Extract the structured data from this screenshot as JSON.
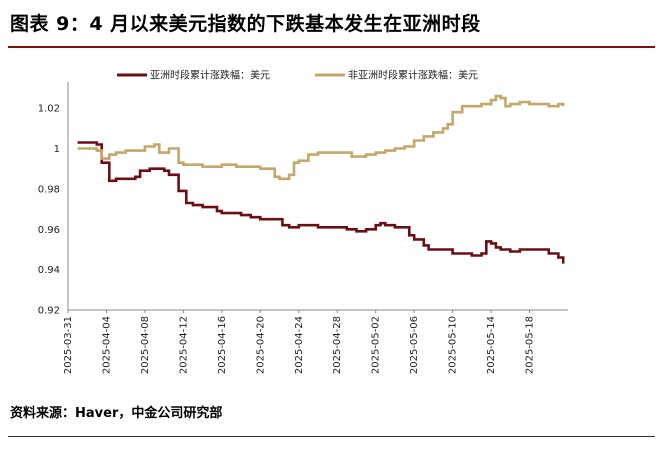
{
  "header": {
    "title": "图表 9：4 月以来美元指数的下跌基本发生在亚洲时段"
  },
  "footer": {
    "source": "资料来源：Haver，中金公司研究部"
  },
  "colors": {
    "asia": "#6b0f14",
    "non_asia": "#c4a86a",
    "rule": "#7b0f12",
    "axis": "#888888"
  },
  "chart_data": {
    "type": "line",
    "title": "图表 9：4 月以来美元指数的下跌基本发生在亚洲时段",
    "xlabel": "",
    "ylabel": "",
    "ylim": [
      0.92,
      1.03
    ],
    "yticks": [
      "1.02",
      "1",
      "0.98",
      "0.96",
      "0.94",
      "0.92"
    ],
    "ytick_values": [
      1.02,
      1.0,
      0.98,
      0.96,
      0.94,
      0.92
    ],
    "x_range_days": [
      0,
      52
    ],
    "xticks": [
      "2025-03-31",
      "2025-04-04",
      "2025-04-08",
      "2025-04-12",
      "2025-04-16",
      "2025-04-20",
      "2025-04-24",
      "2025-04-28",
      "2025-05-02",
      "2025-05-06",
      "2025-05-10",
      "2025-05-14",
      "2025-05-18"
    ],
    "xtick_days": [
      0,
      4,
      8,
      12,
      16,
      20,
      24,
      28,
      32,
      36,
      40,
      44,
      48
    ],
    "legend_position": "top",
    "series": [
      {
        "name": "亚洲时段累计涨跌幅：美元",
        "color": "#6b0f14",
        "points": [
          [
            1,
            1.003
          ],
          [
            2,
            1.003
          ],
          [
            3,
            1.002
          ],
          [
            3.5,
            0.993
          ],
          [
            4,
            0.993
          ],
          [
            4.3,
            0.984
          ],
          [
            5,
            0.985
          ],
          [
            7,
            0.986
          ],
          [
            7.5,
            0.989
          ],
          [
            8,
            0.989
          ],
          [
            8.5,
            0.99
          ],
          [
            9,
            0.99
          ],
          [
            10,
            0.989
          ],
          [
            10.5,
            0.987
          ],
          [
            11,
            0.987
          ],
          [
            11.5,
            0.979
          ],
          [
            12,
            0.979
          ],
          [
            12.3,
            0.973
          ],
          [
            13,
            0.972
          ],
          [
            14,
            0.971
          ],
          [
            15,
            0.971
          ],
          [
            15.5,
            0.969
          ],
          [
            16,
            0.968
          ],
          [
            17,
            0.968
          ],
          [
            18,
            0.967
          ],
          [
            19,
            0.966
          ],
          [
            20,
            0.965
          ],
          [
            21,
            0.965
          ],
          [
            22,
            0.965
          ],
          [
            22.3,
            0.962
          ],
          [
            23,
            0.961
          ],
          [
            23.5,
            0.961
          ],
          [
            24,
            0.962
          ],
          [
            25,
            0.962
          ],
          [
            26,
            0.961
          ],
          [
            27,
            0.961
          ],
          [
            28,
            0.961
          ],
          [
            29,
            0.96
          ],
          [
            30,
            0.959
          ],
          [
            31,
            0.96
          ],
          [
            32,
            0.962
          ],
          [
            32.5,
            0.963
          ],
          [
            33,
            0.962
          ],
          [
            34,
            0.961
          ],
          [
            35,
            0.961
          ],
          [
            35.5,
            0.957
          ],
          [
            36,
            0.955
          ],
          [
            37,
            0.952
          ],
          [
            37.5,
            0.95
          ],
          [
            38,
            0.95
          ],
          [
            39,
            0.95
          ],
          [
            40,
            0.948
          ],
          [
            41,
            0.948
          ],
          [
            42,
            0.947
          ],
          [
            43,
            0.948
          ],
          [
            43.5,
            0.954
          ],
          [
            44,
            0.953
          ],
          [
            44.5,
            0.951
          ],
          [
            45,
            0.95
          ],
          [
            46,
            0.949
          ],
          [
            47,
            0.95
          ],
          [
            48,
            0.95
          ],
          [
            49,
            0.95
          ],
          [
            50,
            0.948
          ],
          [
            51,
            0.946
          ],
          [
            51.5,
            0.943
          ]
        ]
      },
      {
        "name": "非亚洲时段累计涨跌幅：美元",
        "color": "#c4a86a",
        "points": [
          [
            1,
            1.0
          ],
          [
            2,
            1.0
          ],
          [
            3,
            0.999
          ],
          [
            3.5,
            0.995
          ],
          [
            4,
            0.995
          ],
          [
            4.3,
            0.997
          ],
          [
            5,
            0.998
          ],
          [
            6,
            0.999
          ],
          [
            7,
            0.999
          ],
          [
            8,
            1.001
          ],
          [
            9,
            1.002
          ],
          [
            9.5,
            0.998
          ],
          [
            10,
            0.998
          ],
          [
            10.5,
            1.0
          ],
          [
            11,
            1.0
          ],
          [
            11.5,
            0.993
          ],
          [
            12,
            0.992
          ],
          [
            14,
            0.991
          ],
          [
            15,
            0.991
          ],
          [
            16,
            0.992
          ],
          [
            17,
            0.992
          ],
          [
            17.5,
            0.991
          ],
          [
            18,
            0.991
          ],
          [
            19,
            0.991
          ],
          [
            20,
            0.99
          ],
          [
            21,
            0.99
          ],
          [
            21.5,
            0.986
          ],
          [
            22,
            0.985
          ],
          [
            23,
            0.987
          ],
          [
            23.5,
            0.993
          ],
          [
            24,
            0.994
          ],
          [
            25,
            0.997
          ],
          [
            26,
            0.998
          ],
          [
            27,
            0.998
          ],
          [
            28,
            0.998
          ],
          [
            29,
            0.998
          ],
          [
            29.5,
            0.996
          ],
          [
            30,
            0.996
          ],
          [
            31,
            0.997
          ],
          [
            32,
            0.998
          ],
          [
            33,
            0.999
          ],
          [
            34,
            1.0
          ],
          [
            35,
            1.001
          ],
          [
            36,
            1.004
          ],
          [
            37,
            1.006
          ],
          [
            38,
            1.008
          ],
          [
            39,
            1.01
          ],
          [
            39.5,
            1.012
          ],
          [
            40,
            1.018
          ],
          [
            41,
            1.021
          ],
          [
            42,
            1.021
          ],
          [
            43,
            1.022
          ],
          [
            44,
            1.024
          ],
          [
            44.5,
            1.026
          ],
          [
            45,
            1.025
          ],
          [
            45.5,
            1.021
          ],
          [
            46,
            1.022
          ],
          [
            47,
            1.023
          ],
          [
            48,
            1.022
          ],
          [
            49,
            1.022
          ],
          [
            50,
            1.021
          ],
          [
            51,
            1.022
          ],
          [
            51.5,
            1.021
          ]
        ]
      }
    ]
  }
}
